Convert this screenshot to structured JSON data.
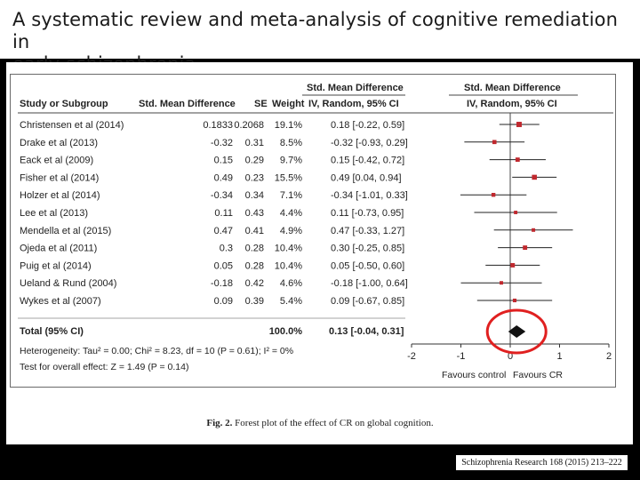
{
  "slide": {
    "title_line1": "A systematic review and meta-analysis of cognitive remediation in",
    "title_line2": "early schizophrenia",
    "caption_label": "Fig. 2.",
    "caption_text": "Forest plot of the effect of CR on global cognition.",
    "citation": "Schizophrenia Research 168 (2015) 213–222",
    "highlight_color": "#e02020"
  },
  "chart_data": {
    "type": "forest",
    "title": "Forest plot of the effect of CR on global cognition",
    "headers": {
      "study": "Study or Subgroup",
      "smd": "Std. Mean Difference",
      "se": "SE",
      "weight": "Weight",
      "ci_top": "Std. Mean Difference",
      "ci_bottom": "IV, Random, 95% CI",
      "plot_top": "Std. Mean Difference",
      "plot_bottom": "IV, Random, 95% CI"
    },
    "studies": [
      {
        "name": "Christensen et al (2014)",
        "smd": "0.1833",
        "se": "0.2068",
        "weight": "19.1%",
        "ci_text": "0.18 [-0.22, 0.59]",
        "est": 0.18,
        "lo": -0.22,
        "hi": 0.59
      },
      {
        "name": "Drake et al (2013)",
        "smd": "-0.32",
        "se": "0.31",
        "weight": "8.5%",
        "ci_text": "-0.32 [-0.93, 0.29]",
        "est": -0.32,
        "lo": -0.93,
        "hi": 0.29
      },
      {
        "name": "Eack et al (2009)",
        "smd": "0.15",
        "se": "0.29",
        "weight": "9.7%",
        "ci_text": "0.15 [-0.42, 0.72]",
        "est": 0.15,
        "lo": -0.42,
        "hi": 0.72
      },
      {
        "name": "Fisher et al (2014)",
        "smd": "0.49",
        "se": "0.23",
        "weight": "15.5%",
        "ci_text": "0.49 [0.04, 0.94]",
        "est": 0.49,
        "lo": 0.04,
        "hi": 0.94
      },
      {
        "name": "Holzer et al (2014)",
        "smd": "-0.34",
        "se": "0.34",
        "weight": "7.1%",
        "ci_text": "-0.34 [-1.01, 0.33]",
        "est": -0.34,
        "lo": -1.01,
        "hi": 0.33
      },
      {
        "name": "Lee et al (2013)",
        "smd": "0.11",
        "se": "0.43",
        "weight": "4.4%",
        "ci_text": "0.11 [-0.73, 0.95]",
        "est": 0.11,
        "lo": -0.73,
        "hi": 0.95
      },
      {
        "name": "Mendella et al (2015)",
        "smd": "0.47",
        "se": "0.41",
        "weight": "4.9%",
        "ci_text": "0.47 [-0.33, 1.27]",
        "est": 0.47,
        "lo": -0.33,
        "hi": 1.27
      },
      {
        "name": "Ojeda et al (2011)",
        "smd": "0.3",
        "se": "0.28",
        "weight": "10.4%",
        "ci_text": "0.30 [-0.25, 0.85]",
        "est": 0.3,
        "lo": -0.25,
        "hi": 0.85
      },
      {
        "name": "Puig et al (2014)",
        "smd": "0.05",
        "se": "0.28",
        "weight": "10.4%",
        "ci_text": "0.05 [-0.50, 0.60]",
        "est": 0.05,
        "lo": -0.5,
        "hi": 0.6
      },
      {
        "name": "Ueland & Rund (2004)",
        "smd": "-0.18",
        "se": "0.42",
        "weight": "4.6%",
        "ci_text": "-0.18 [-1.00, 0.64]",
        "est": -0.18,
        "lo": -1.0,
        "hi": 0.64
      },
      {
        "name": "Wykes et al (2007)",
        "smd": "0.09",
        "se": "0.39",
        "weight": "5.4%",
        "ci_text": "0.09 [-0.67, 0.85]",
        "est": 0.09,
        "lo": -0.67,
        "hi": 0.85
      }
    ],
    "total": {
      "name": "Total (95% CI)",
      "weight": "100.0%",
      "ci_text": "0.13 [-0.04, 0.31]",
      "est": 0.13,
      "lo": -0.04,
      "hi": 0.31
    },
    "heterogeneity": "Heterogeneity: Tau² = 0.00; Chi² = 8.23, df = 10 (P = 0.61); I² = 0%",
    "overall_effect": "Test for overall effect: Z = 1.49 (P = 0.14)",
    "x_ticks": [
      -2,
      -1,
      0,
      1,
      2
    ],
    "x_tick_labels": [
      "-2",
      "-1",
      "0",
      "1",
      "2"
    ],
    "xlim": [
      -2,
      2
    ],
    "favours_left": "Favours control",
    "favours_right": "Favours CR",
    "marker_color": "#c0282e"
  }
}
